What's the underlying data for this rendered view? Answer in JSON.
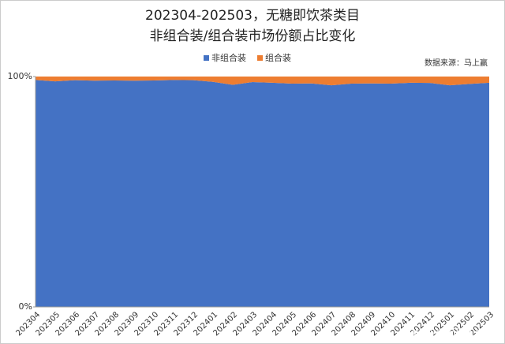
{
  "chart_data": {
    "type": "stacked_area",
    "title": [
      "202304-202503，无糖即饮茶类目",
      "非组合装/组合装市场份额占比变化"
    ],
    "source": "数据来源：马上赢",
    "watermark": "www.365jz.com",
    "categories": [
      "202304",
      "202305",
      "202306",
      "202307",
      "202308",
      "202309",
      "202310",
      "202311",
      "202312",
      "202401",
      "202402",
      "202403",
      "202404",
      "202405",
      "202406",
      "202407",
      "202408",
      "202409",
      "202410",
      "202411",
      "202412",
      "202501",
      "202502",
      "202503"
    ],
    "series": [
      {
        "name": "非组合装",
        "color": "#4472c4",
        "values": [
          98.5,
          97.9,
          98.4,
          98.2,
          98.3,
          98.2,
          98.3,
          98.5,
          98.4,
          97.7,
          96.4,
          97.6,
          97.3,
          96.9,
          97.0,
          96.2,
          96.9,
          97.0,
          96.9,
          97.3,
          97.2,
          96.2,
          96.8,
          97.3
        ]
      },
      {
        "name": "组合装",
        "color": "#ed7d31",
        "values": [
          1.5,
          2.1,
          1.6,
          1.8,
          1.7,
          1.8,
          1.7,
          1.5,
          1.6,
          2.3,
          3.6,
          2.4,
          2.7,
          3.1,
          3.0,
          3.8,
          3.1,
          3.0,
          3.1,
          2.7,
          2.8,
          3.8,
          3.2,
          2.7
        ]
      }
    ],
    "ylim": [
      0,
      100
    ],
    "yticks": [
      {
        "value": 0,
        "label": "0%"
      },
      {
        "value": 100,
        "label": "100%"
      }
    ]
  }
}
